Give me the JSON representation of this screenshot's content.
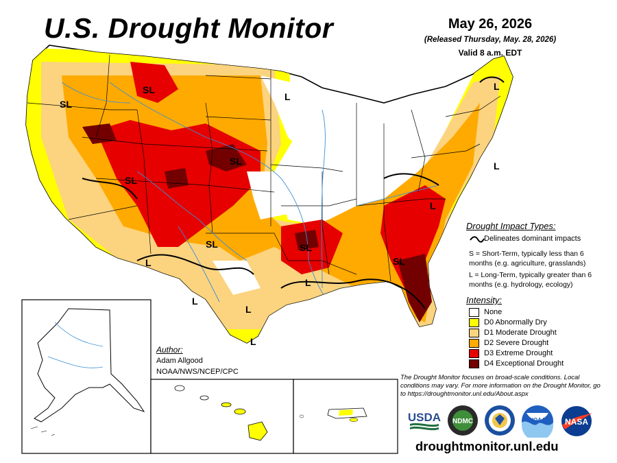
{
  "header": {
    "title": "U.S. Drought Monitor",
    "date": "May 26, 2026",
    "released": "(Released Thursday, May. 28, 2026)",
    "valid": "Valid 8 a.m. EDT"
  },
  "impact_legend": {
    "title": "Drought Impact Types:",
    "delineates": "Delineates dominant impacts",
    "short_term": "S = Short-Term, typically less than 6 months (e.g. agriculture, grasslands)",
    "long_term": "L = Long-Term, typically greater than 6 months (e.g. hydrology, ecology)"
  },
  "intensity_legend": {
    "title": "Intensity:",
    "items": [
      {
        "label": "None",
        "color": "#ffffff"
      },
      {
        "label": "D0 Abnormally Dry",
        "color": "#ffff00"
      },
      {
        "label": "D1 Moderate Drought",
        "color": "#fcd37f"
      },
      {
        "label": "D2 Severe Drought",
        "color": "#ffaa00"
      },
      {
        "label": "D3 Extreme Drought",
        "color": "#e60000"
      },
      {
        "label": "D4 Exceptional Drought",
        "color": "#730000"
      }
    ]
  },
  "author": {
    "title": "Author:",
    "name": "Adam Allgood",
    "org": "NOAA/NWS/NCEP/CPC"
  },
  "note": "The Drought Monitor focuses on broad-scale conditions. Local conditions may vary. For more information on the Drought Monitor, go to https://droughtmonitor.unl.edu/About.aspx",
  "map_labels": [
    "SL",
    "SL",
    "SL",
    "SL",
    "SL",
    "SL",
    "SL",
    "L",
    "L",
    "L",
    "L",
    "L",
    "L",
    "L",
    "L",
    "L"
  ],
  "logos": {
    "usda": "USDA",
    "ndmc": "NDMC",
    "noaa": "NOAA",
    "nasa": "NASA"
  },
  "url": "droughtmonitor.unl.edu"
}
